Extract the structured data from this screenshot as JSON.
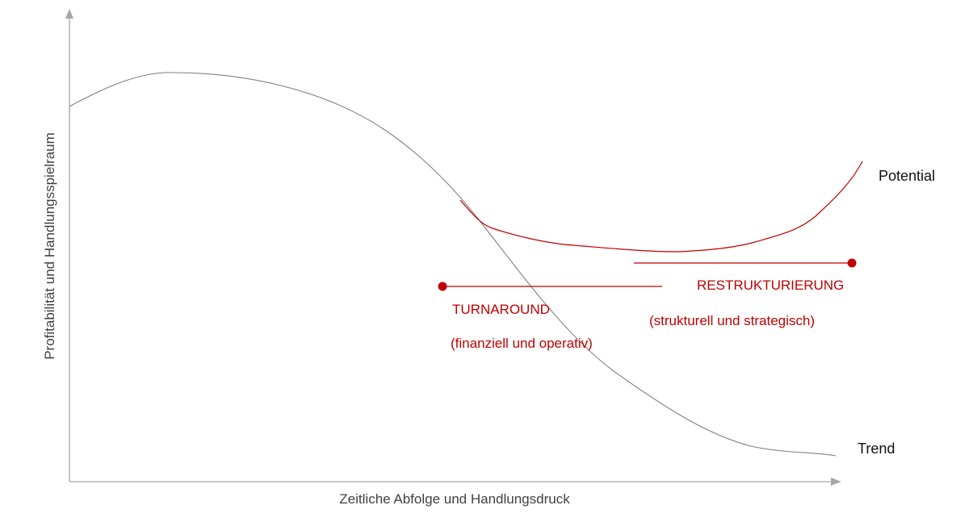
{
  "axes": {
    "y_label": "Profitabilität und Handlungsspielraum",
    "x_label": "Zeitliche Abfolge und Handlungsdruck"
  },
  "curves": {
    "potential_label": "Potential",
    "trend_label": "Trend"
  },
  "phases": {
    "turnaround": {
      "title": "TURNAROUND",
      "subtitle": "(finanziell und operativ)"
    },
    "restrukturierung": {
      "title": "RESTRUKTURIERUNG",
      "subtitle": "(strukturell und strategisch)"
    }
  },
  "colors": {
    "accent": "#c00000",
    "curve": "#808080",
    "axis": "#a6a6a6",
    "text": "#404040"
  }
}
